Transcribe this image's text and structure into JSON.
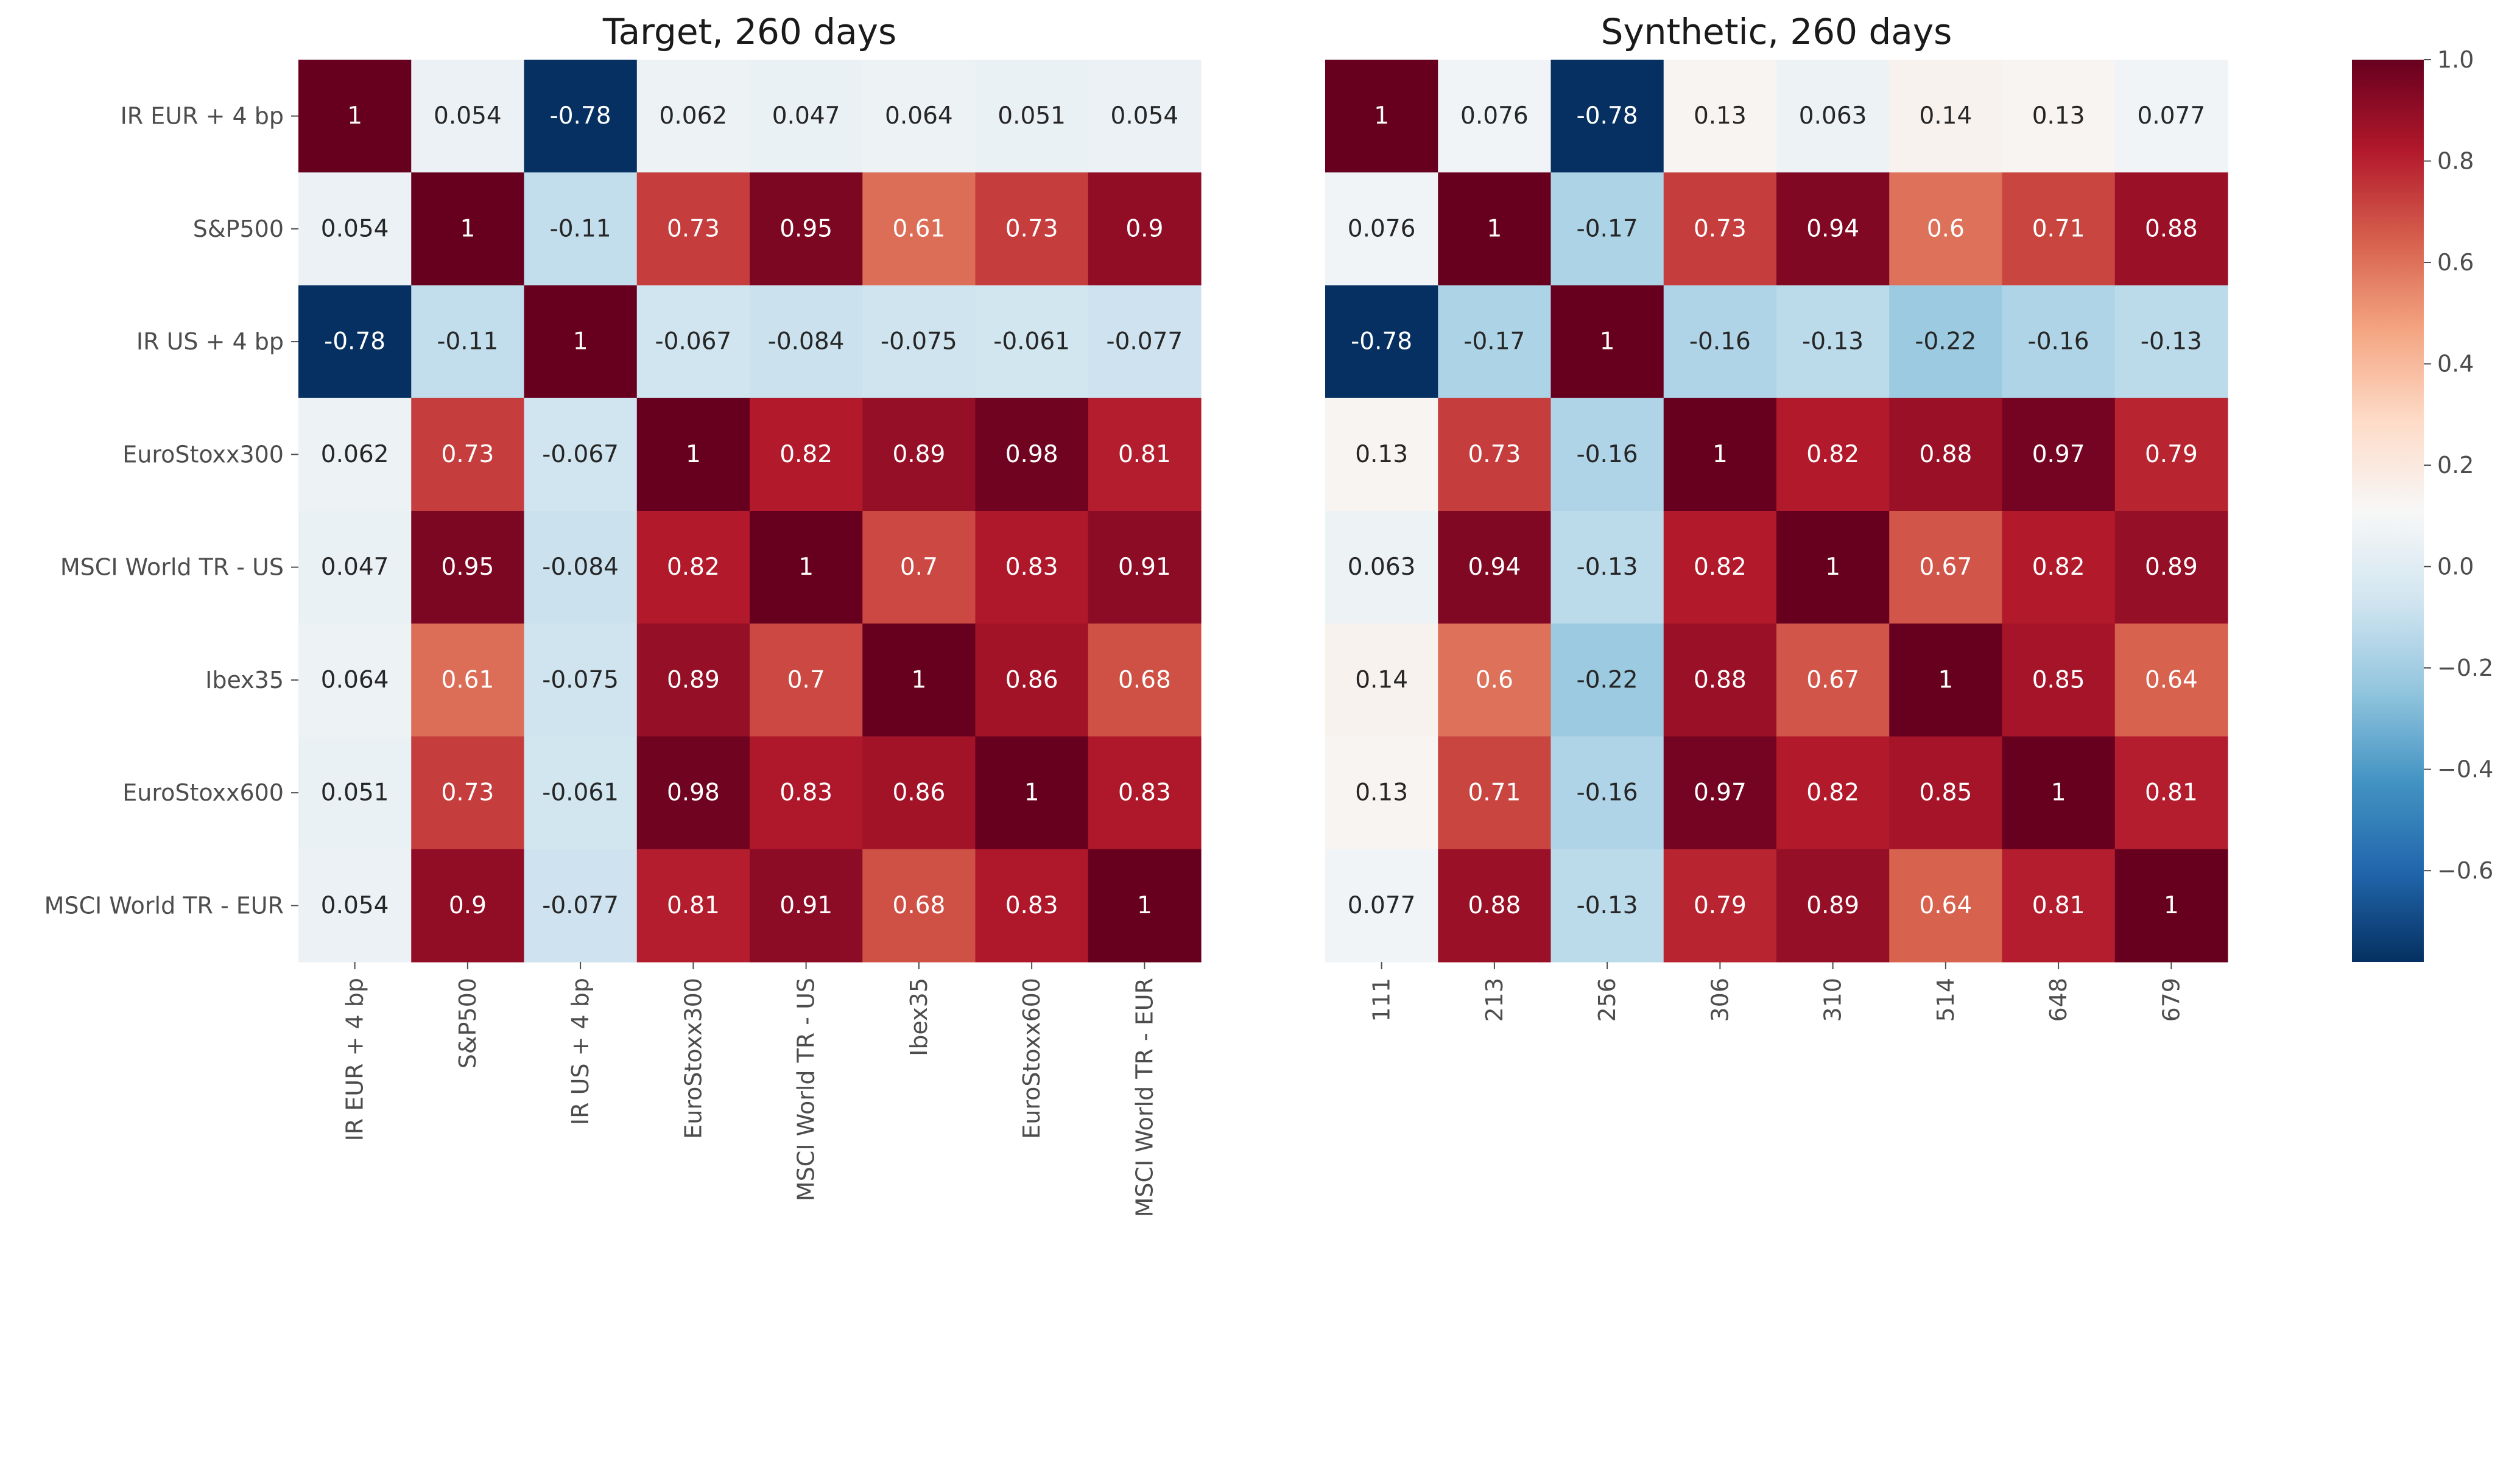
{
  "figure": {
    "colormap": "RdBu_r",
    "colors": {
      "max": "#67001f",
      "mid": "#f7f7f7",
      "min": "#053061",
      "tick_text": "#4d4d4d",
      "annotation_dark": "#262626",
      "annotation_light": "#ffffff"
    }
  },
  "chart_data": [
    {
      "type": "heatmap",
      "title": "Target, 260 days",
      "x_labels": [
        "IR EUR + 4 bp",
        "S&P500",
        "IR US + 4 bp",
        "EuroStoxx300",
        "MSCI World TR - US",
        "Ibex35",
        "EuroStoxx600",
        "MSCI World TR - EUR"
      ],
      "y_labels": [
        "IR EUR + 4 bp",
        "S&P500",
        "IR US + 4 bp",
        "EuroStoxx300",
        "MSCI World TR - US",
        "Ibex35",
        "EuroStoxx600",
        "MSCI World TR - EUR"
      ],
      "values": [
        [
          1,
          0.054,
          -0.78,
          0.062,
          0.047,
          0.064,
          0.051,
          0.054
        ],
        [
          0.054,
          1,
          -0.11,
          0.73,
          0.95,
          0.61,
          0.73,
          0.9
        ],
        [
          -0.78,
          -0.11,
          1,
          -0.067,
          -0.084,
          -0.075,
          -0.061,
          -0.077
        ],
        [
          0.062,
          0.73,
          -0.067,
          1,
          0.82,
          0.89,
          0.98,
          0.81
        ],
        [
          0.047,
          0.95,
          -0.084,
          0.82,
          1,
          0.7,
          0.83,
          0.91
        ],
        [
          0.064,
          0.61,
          -0.075,
          0.89,
          0.7,
          1,
          0.86,
          0.68
        ],
        [
          0.051,
          0.73,
          -0.061,
          0.98,
          0.83,
          0.86,
          1,
          0.83
        ],
        [
          0.054,
          0.9,
          -0.077,
          0.81,
          0.91,
          0.68,
          0.83,
          1
        ]
      ],
      "annotations": [
        [
          "1",
          "0.054",
          "-0.78",
          "0.062",
          "0.047",
          "0.064",
          "0.051",
          "0.054"
        ],
        [
          "0.054",
          "1",
          "-0.11",
          "0.73",
          "0.95",
          "0.61",
          "0.73",
          "0.9"
        ],
        [
          "-0.78",
          "-0.11",
          "1",
          "-0.067",
          "-0.084",
          "-0.075",
          "-0.061",
          "-0.077"
        ],
        [
          "0.062",
          "0.73",
          "-0.067",
          "1",
          "0.82",
          "0.89",
          "0.98",
          "0.81"
        ],
        [
          "0.047",
          "0.95",
          "-0.084",
          "0.82",
          "1",
          "0.7",
          "0.83",
          "0.91"
        ],
        [
          "0.064",
          "0.61",
          "-0.075",
          "0.89",
          "0.7",
          "1",
          "0.86",
          "0.68"
        ],
        [
          "0.051",
          "0.73",
          "-0.061",
          "0.98",
          "0.83",
          "0.86",
          "1",
          "0.83"
        ],
        [
          "0.054",
          "0.9",
          "-0.077",
          "0.81",
          "0.91",
          "0.68",
          "0.83",
          "1"
        ]
      ]
    },
    {
      "type": "heatmap",
      "title": "Synthetic, 260 days",
      "x_labels": [
        "111",
        "213",
        "256",
        "306",
        "310",
        "514",
        "648",
        "679"
      ],
      "y_labels": [],
      "values": [
        [
          1,
          0.076,
          -0.78,
          0.13,
          0.063,
          0.14,
          0.13,
          0.077
        ],
        [
          0.076,
          1,
          -0.17,
          0.73,
          0.94,
          0.6,
          0.71,
          0.88
        ],
        [
          -0.78,
          -0.17,
          1,
          -0.16,
          -0.13,
          -0.22,
          -0.16,
          -0.13
        ],
        [
          0.13,
          0.73,
          -0.16,
          1,
          0.82,
          0.88,
          0.97,
          0.79
        ],
        [
          0.063,
          0.94,
          -0.13,
          0.82,
          1,
          0.67,
          0.82,
          0.89
        ],
        [
          0.14,
          0.6,
          -0.22,
          0.88,
          0.67,
          1,
          0.85,
          0.64
        ],
        [
          0.13,
          0.71,
          -0.16,
          0.97,
          0.82,
          0.85,
          1,
          0.81
        ],
        [
          0.077,
          0.88,
          -0.13,
          0.79,
          0.89,
          0.64,
          0.81,
          1
        ]
      ],
      "annotations": [
        [
          "1",
          "0.076",
          "-0.78",
          "0.13",
          "0.063",
          "0.14",
          "0.13",
          "0.077"
        ],
        [
          "0.076",
          "1",
          "-0.17",
          "0.73",
          "0.94",
          "0.6",
          "0.71",
          "0.88"
        ],
        [
          "-0.78",
          "-0.17",
          "1",
          "-0.16",
          "-0.13",
          "-0.22",
          "-0.16",
          "-0.13"
        ],
        [
          "0.13",
          "0.73",
          "-0.16",
          "1",
          "0.82",
          "0.88",
          "0.97",
          "0.79"
        ],
        [
          "0.063",
          "0.94",
          "-0.13",
          "0.82",
          "1",
          "0.67",
          "0.82",
          "0.89"
        ],
        [
          "0.14",
          "0.6",
          "-0.22",
          "0.88",
          "0.67",
          "1",
          "0.85",
          "0.64"
        ],
        [
          "0.13",
          "0.71",
          "-0.16",
          "0.97",
          "0.82",
          "0.85",
          "1",
          "0.81"
        ],
        [
          "0.077",
          "0.88",
          "-0.13",
          "0.79",
          "0.89",
          "0.64",
          "0.81",
          "1"
        ]
      ]
    }
  ],
  "colorbar": {
    "vmin": -0.78,
    "vmax": 1.0,
    "ticks": [
      -0.6,
      -0.4,
      -0.2,
      0.0,
      0.2,
      0.4,
      0.6,
      0.8,
      1.0
    ],
    "tick_labels": [
      "−0.6",
      "−0.4",
      "−0.2",
      "0.0",
      "0.2",
      "0.4",
      "0.6",
      "0.8",
      "1.0"
    ]
  }
}
